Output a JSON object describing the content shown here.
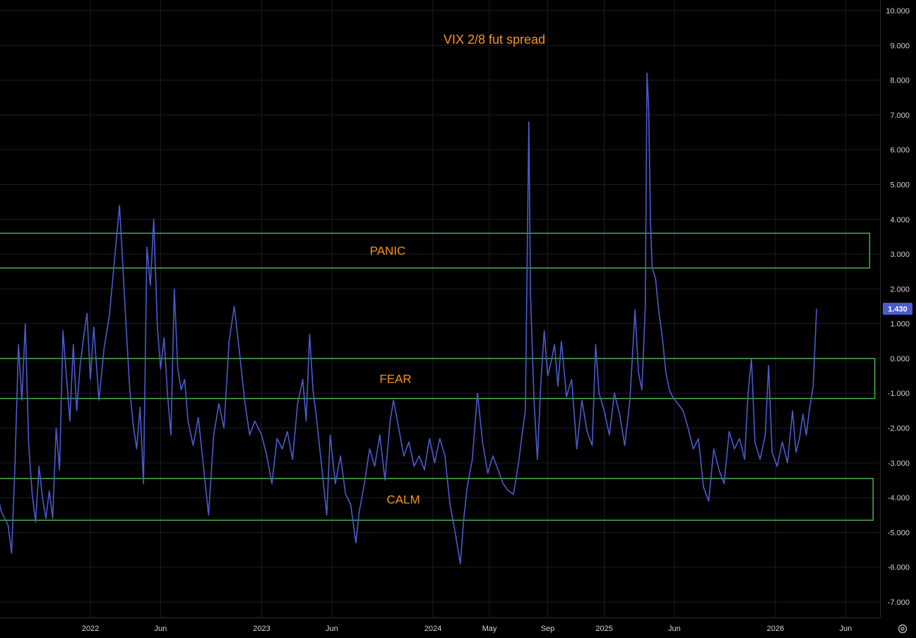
{
  "chart_data": {
    "type": "line",
    "title": "VIX 2/8 fut spread",
    "xlabel": "",
    "ylabel": "",
    "ylim": [
      -7.5,
      10.3
    ],
    "y_ticks": [
      "10.000",
      "9.000",
      "8.000",
      "7.000",
      "6.000",
      "5.000",
      "4.000",
      "3.000",
      "2.000",
      "1.000",
      "0.000",
      "-1.000",
      "-2.000",
      "-3.000",
      "-4.000",
      "-5.000",
      "-6.000",
      "-7.000"
    ],
    "x_ticks": [
      {
        "label": "2022",
        "t": 2022.0
      },
      {
        "label": "Jun",
        "t": 2022.41
      },
      {
        "label": "2023",
        "t": 2023.0
      },
      {
        "label": "Jun",
        "t": 2023.41
      },
      {
        "label": "2024",
        "t": 2024.0
      },
      {
        "label": "May",
        "t": 2024.33
      },
      {
        "label": "Sep",
        "t": 2024.67
      },
      {
        "label": "2025",
        "t": 2025.0
      },
      {
        "label": "Jun",
        "t": 2025.41
      },
      {
        "label": "2026",
        "t": 2026.0
      },
      {
        "label": "Jun",
        "t": 2026.41
      }
    ],
    "last_value": "1.430",
    "line_color": "#4a5bd0",
    "grid": true,
    "zones": [
      {
        "label": "PANIC",
        "y_top": 3.6,
        "y_bottom": 2.6,
        "t_start": 2021.3,
        "t_end": 2026.55
      },
      {
        "label": "FEAR",
        "y_top": 0.0,
        "y_bottom": -1.15,
        "t_start": 2021.4,
        "t_end": 2026.58
      },
      {
        "label": "CALM",
        "y_top": -3.45,
        "y_bottom": -4.65,
        "t_start": 2021.42,
        "t_end": 2026.57
      }
    ],
    "series": [
      {
        "points": [
          [
            2021.1,
            -3.8
          ],
          [
            2021.13,
            -4.5
          ],
          [
            2021.16,
            -2.9
          ],
          [
            2021.19,
            -3.5
          ],
          [
            2021.22,
            -4.2
          ],
          [
            2021.25,
            -2.2
          ],
          [
            2021.28,
            -2.8
          ],
          [
            2021.31,
            -3.0
          ],
          [
            2021.34,
            -3.8
          ],
          [
            2021.37,
            -2.2
          ],
          [
            2021.4,
            -3.5
          ],
          [
            2021.42,
            -5.1
          ],
          [
            2021.44,
            -5.7
          ],
          [
            2021.46,
            -4.0
          ],
          [
            2021.48,
            -4.4
          ],
          [
            2021.5,
            -4.6
          ],
          [
            2021.52,
            -4.8
          ],
          [
            2021.54,
            -5.6
          ],
          [
            2021.56,
            -3.0
          ],
          [
            2021.58,
            0.4
          ],
          [
            2021.6,
            -1.2
          ],
          [
            2021.62,
            1.0
          ],
          [
            2021.64,
            -2.5
          ],
          [
            2021.66,
            -3.9
          ],
          [
            2021.68,
            -4.7
          ],
          [
            2021.7,
            -3.1
          ],
          [
            2021.72,
            -4.0
          ],
          [
            2021.74,
            -4.6
          ],
          [
            2021.76,
            -3.8
          ],
          [
            2021.78,
            -4.6
          ],
          [
            2021.8,
            -2.0
          ],
          [
            2021.82,
            -3.2
          ],
          [
            2021.84,
            0.8
          ],
          [
            2021.86,
            -0.5
          ],
          [
            2021.88,
            -1.8
          ],
          [
            2021.9,
            0.4
          ],
          [
            2021.92,
            -1.5
          ],
          [
            2021.94,
            -0.2
          ],
          [
            2021.96,
            0.6
          ],
          [
            2021.98,
            1.3
          ],
          [
            2022.0,
            -0.6
          ],
          [
            2022.02,
            0.9
          ],
          [
            2022.05,
            -1.2
          ],
          [
            2022.08,
            0.3
          ],
          [
            2022.11,
            1.2
          ],
          [
            2022.14,
            2.8
          ],
          [
            2022.17,
            4.4
          ],
          [
            2022.19,
            2.6
          ],
          [
            2022.21,
            0.8
          ],
          [
            2022.23,
            -0.9
          ],
          [
            2022.25,
            -1.9
          ],
          [
            2022.27,
            -2.6
          ],
          [
            2022.29,
            -1.4
          ],
          [
            2022.31,
            -3.6
          ],
          [
            2022.33,
            3.2
          ],
          [
            2022.35,
            2.1
          ],
          [
            2022.37,
            4.0
          ],
          [
            2022.39,
            1.0
          ],
          [
            2022.41,
            -0.3
          ],
          [
            2022.43,
            0.6
          ],
          [
            2022.45,
            -1.0
          ],
          [
            2022.47,
            -2.2
          ],
          [
            2022.49,
            2.0
          ],
          [
            2022.51,
            -0.3
          ],
          [
            2022.53,
            -0.9
          ],
          [
            2022.55,
            -0.6
          ],
          [
            2022.57,
            -1.8
          ],
          [
            2022.6,
            -2.5
          ],
          [
            2022.63,
            -1.7
          ],
          [
            2022.66,
            -3.1
          ],
          [
            2022.69,
            -4.5
          ],
          [
            2022.72,
            -2.2
          ],
          [
            2022.75,
            -1.3
          ],
          [
            2022.78,
            -2.0
          ],
          [
            2022.81,
            0.5
          ],
          [
            2022.84,
            1.5
          ],
          [
            2022.87,
            0.2
          ],
          [
            2022.9,
            -1.2
          ],
          [
            2022.93,
            -2.2
          ],
          [
            2022.96,
            -1.8
          ],
          [
            2023.0,
            -2.2
          ],
          [
            2023.03,
            -2.8
          ],
          [
            2023.06,
            -3.6
          ],
          [
            2023.09,
            -2.3
          ],
          [
            2023.12,
            -2.6
          ],
          [
            2023.15,
            -2.1
          ],
          [
            2023.18,
            -2.9
          ],
          [
            2023.21,
            -1.3
          ],
          [
            2023.24,
            -0.6
          ],
          [
            2023.26,
            -1.8
          ],
          [
            2023.28,
            0.7
          ],
          [
            2023.3,
            -0.9
          ],
          [
            2023.32,
            -1.7
          ],
          [
            2023.35,
            -3.1
          ],
          [
            2023.38,
            -4.5
          ],
          [
            2023.4,
            -2.2
          ],
          [
            2023.43,
            -3.6
          ],
          [
            2023.46,
            -2.8
          ],
          [
            2023.49,
            -3.9
          ],
          [
            2023.52,
            -4.2
          ],
          [
            2023.55,
            -5.3
          ],
          [
            2023.57,
            -4.4
          ],
          [
            2023.6,
            -3.6
          ],
          [
            2023.63,
            -2.6
          ],
          [
            2023.66,
            -3.1
          ],
          [
            2023.69,
            -2.2
          ],
          [
            2023.72,
            -3.5
          ],
          [
            2023.75,
            -1.8
          ],
          [
            2023.77,
            -1.2
          ],
          [
            2023.8,
            -2.0
          ],
          [
            2023.83,
            -2.8
          ],
          [
            2023.86,
            -2.4
          ],
          [
            2023.89,
            -3.1
          ],
          [
            2023.92,
            -2.8
          ],
          [
            2023.95,
            -3.2
          ],
          [
            2023.98,
            -2.3
          ],
          [
            2024.01,
            -3.0
          ],
          [
            2024.04,
            -2.3
          ],
          [
            2024.07,
            -2.8
          ],
          [
            2024.1,
            -4.2
          ],
          [
            2024.13,
            -5.0
          ],
          [
            2024.16,
            -5.9
          ],
          [
            2024.18,
            -4.6
          ],
          [
            2024.2,
            -3.7
          ],
          [
            2024.23,
            -2.9
          ],
          [
            2024.26,
            -1.0
          ],
          [
            2024.29,
            -2.4
          ],
          [
            2024.32,
            -3.3
          ],
          [
            2024.35,
            -2.8
          ],
          [
            2024.38,
            -3.2
          ],
          [
            2024.41,
            -3.6
          ],
          [
            2024.44,
            -3.8
          ],
          [
            2024.47,
            -3.9
          ],
          [
            2024.5,
            -3.0
          ],
          [
            2024.52,
            -2.2
          ],
          [
            2024.54,
            -1.5
          ],
          [
            2024.56,
            6.8
          ],
          [
            2024.57,
            1.8
          ],
          [
            2024.59,
            -1.2
          ],
          [
            2024.61,
            -2.9
          ],
          [
            2024.63,
            -0.7
          ],
          [
            2024.65,
            0.8
          ],
          [
            2024.67,
            -0.5
          ],
          [
            2024.69,
            -0.1
          ],
          [
            2024.71,
            0.4
          ],
          [
            2024.73,
            -0.8
          ],
          [
            2024.75,
            0.5
          ],
          [
            2024.78,
            -1.1
          ],
          [
            2024.81,
            -0.6
          ],
          [
            2024.84,
            -2.6
          ],
          [
            2024.87,
            -1.2
          ],
          [
            2024.9,
            -2.1
          ],
          [
            2024.93,
            -2.5
          ],
          [
            2024.95,
            0.4
          ],
          [
            2024.97,
            -1.0
          ],
          [
            2025.0,
            -1.5
          ],
          [
            2025.03,
            -2.2
          ],
          [
            2025.06,
            -1.0
          ],
          [
            2025.09,
            -1.6
          ],
          [
            2025.12,
            -2.5
          ],
          [
            2025.15,
            -1.2
          ],
          [
            2025.18,
            1.4
          ],
          [
            2025.2,
            -0.4
          ],
          [
            2025.22,
            -0.9
          ],
          [
            2025.24,
            1.5
          ],
          [
            2025.25,
            8.2
          ],
          [
            2025.26,
            7.2
          ],
          [
            2025.27,
            4.0
          ],
          [
            2025.28,
            2.6
          ],
          [
            2025.3,
            2.3
          ],
          [
            2025.32,
            1.3
          ],
          [
            2025.34,
            0.6
          ],
          [
            2025.36,
            -0.4
          ],
          [
            2025.38,
            -0.9
          ],
          [
            2025.4,
            -1.1
          ],
          [
            2025.43,
            -1.3
          ],
          [
            2025.46,
            -1.5
          ],
          [
            2025.49,
            -2.0
          ],
          [
            2025.52,
            -2.6
          ],
          [
            2025.55,
            -2.3
          ],
          [
            2025.58,
            -3.7
          ],
          [
            2025.61,
            -4.1
          ],
          [
            2025.64,
            -2.6
          ],
          [
            2025.67,
            -3.2
          ],
          [
            2025.7,
            -3.6
          ],
          [
            2025.73,
            -2.1
          ],
          [
            2025.76,
            -2.6
          ],
          [
            2025.79,
            -2.3
          ],
          [
            2025.82,
            -2.9
          ],
          [
            2025.84,
            -1.0
          ],
          [
            2025.86,
            0.0
          ],
          [
            2025.88,
            -2.4
          ],
          [
            2025.91,
            -2.9
          ],
          [
            2025.94,
            -2.2
          ],
          [
            2025.96,
            -0.2
          ],
          [
            2025.98,
            -2.7
          ],
          [
            2026.01,
            -3.1
          ],
          [
            2026.04,
            -2.4
          ],
          [
            2026.07,
            -3.0
          ],
          [
            2026.1,
            -1.5
          ],
          [
            2026.12,
            -2.7
          ],
          [
            2026.14,
            -2.3
          ],
          [
            2026.16,
            -1.6
          ],
          [
            2026.18,
            -2.2
          ],
          [
            2026.2,
            -1.4
          ],
          [
            2026.22,
            -0.8
          ],
          [
            2026.23,
            0.3
          ],
          [
            2026.24,
            1.43
          ]
        ]
      }
    ]
  },
  "settings_icon": "gear-icon"
}
